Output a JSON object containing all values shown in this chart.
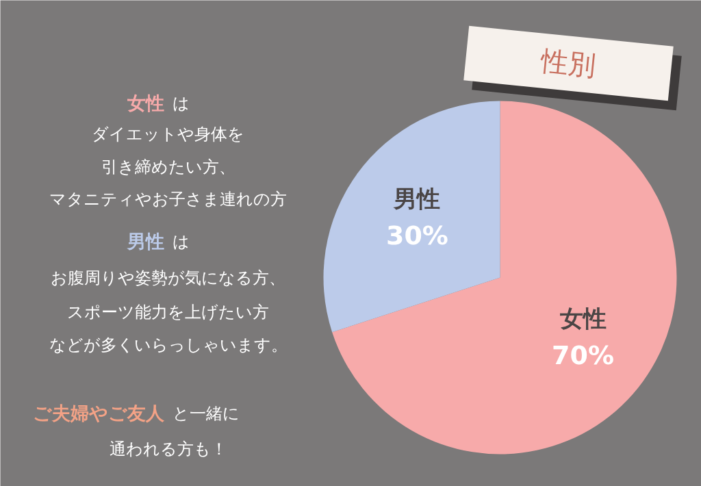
{
  "chart_data": {
    "type": "pie",
    "title": "性別",
    "categories": [
      "女性",
      "男性"
    ],
    "values": [
      70,
      30
    ],
    "colors": [
      "#f7aaaa",
      "#bccbea"
    ],
    "value_labels": [
      "70%",
      "30%"
    ],
    "annotations": [
      "女性 は",
      "ダイエットや身体を",
      "引き締めたい方、",
      "マタニティやお子さま連れの方",
      "男性 は",
      "お腹周りや姿勢が気になる方、",
      "スポーツ能力を上げたい方",
      "などが多くいらっしゃいます。",
      "ご夫婦やご友人 と一緒に",
      "通われる方も！"
    ]
  }
}
